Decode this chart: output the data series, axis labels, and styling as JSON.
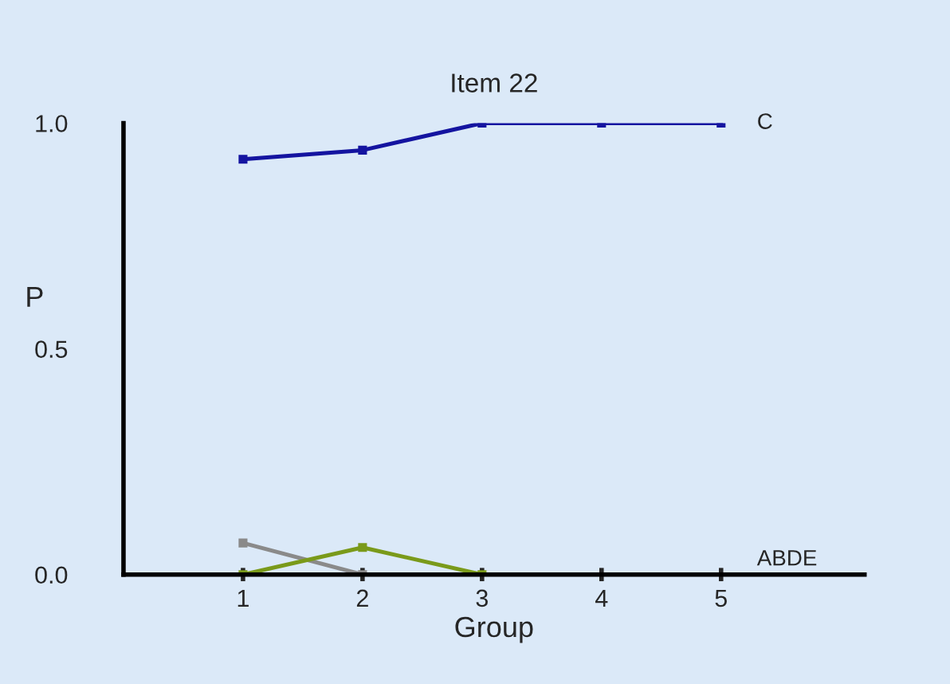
{
  "chart_data": {
    "type": "line",
    "title": "Item 22",
    "xlabel": "Group",
    "ylabel": "P",
    "x": [
      1,
      2,
      3,
      4,
      5
    ],
    "series": [
      {
        "name": "C",
        "color": "#1414a0",
        "values": [
          0.92,
          0.94,
          1.0,
          1.0,
          1.0
        ]
      },
      {
        "color": "#8a8a8a",
        "values": [
          0.07,
          0.0,
          null,
          null,
          null
        ]
      },
      {
        "color": "#7a9a1a",
        "values": [
          0.0,
          0.06,
          0.0,
          null,
          null
        ]
      }
    ],
    "annotations": [
      "ABDE"
    ],
    "xlim": [
      0,
      6.2
    ],
    "ylim": [
      0,
      1.0
    ],
    "xticks": [
      1,
      2,
      3,
      4,
      5
    ],
    "yticks": [
      {
        "value": 0,
        "label": "0.0"
      },
      0.5,
      {
        "value": 1,
        "label": "1.0"
      }
    ],
    "marker": "square",
    "line_style": "solid",
    "grid": false,
    "legend": false
  }
}
